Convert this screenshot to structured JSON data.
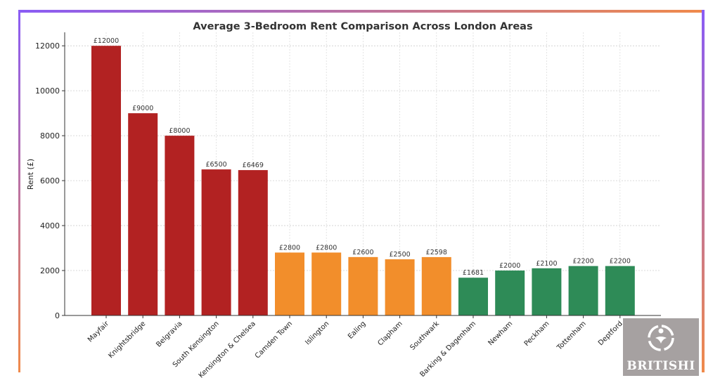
{
  "chart_data": {
    "type": "bar",
    "title": "Average 3-Bedroom Rent Comparison Across London Areas",
    "xlabel": "",
    "ylabel": "Rent (£)",
    "ylim": [
      0,
      12600
    ],
    "yticks": [
      0,
      2000,
      4000,
      6000,
      8000,
      10000,
      12000
    ],
    "grid": true,
    "categories": [
      "Mayfair",
      "Knightsbridge",
      "Belgravia",
      "South Kensington",
      "Kensington & Chelsea",
      "Camden Town",
      "Islington",
      "Ealing",
      "Clapham",
      "Southwark",
      "Barking & Dagenham",
      "Newham",
      "Peckham",
      "Tottenham",
      "Deptford"
    ],
    "values": [
      12000,
      9000,
      8000,
      6500,
      6469,
      2800,
      2800,
      2600,
      2500,
      2598,
      1681,
      2000,
      2100,
      2200,
      2200
    ],
    "value_labels": [
      "£12000",
      "£9000",
      "£8000",
      "£6500",
      "£6469",
      "£2800",
      "£2800",
      "£2600",
      "£2500",
      "£2598",
      "£1681",
      "£2000",
      "£2100",
      "£2200",
      "£2200"
    ],
    "bar_colors": [
      "#b22222",
      "#b22222",
      "#b22222",
      "#b22222",
      "#b22222",
      "#f28e2b",
      "#f28e2b",
      "#f28e2b",
      "#f28e2b",
      "#f28e2b",
      "#2e8b57",
      "#2e8b57",
      "#2e8b57",
      "#2e8b57",
      "#2e8b57"
    ]
  },
  "logo": {
    "text": "BRITISHI",
    "icon": "britishi-logo-icon"
  },
  "colors": {
    "frame_left": "#8a5cf5",
    "frame_right": "#f08a4b",
    "logo_bg": "#a6a1a1"
  }
}
